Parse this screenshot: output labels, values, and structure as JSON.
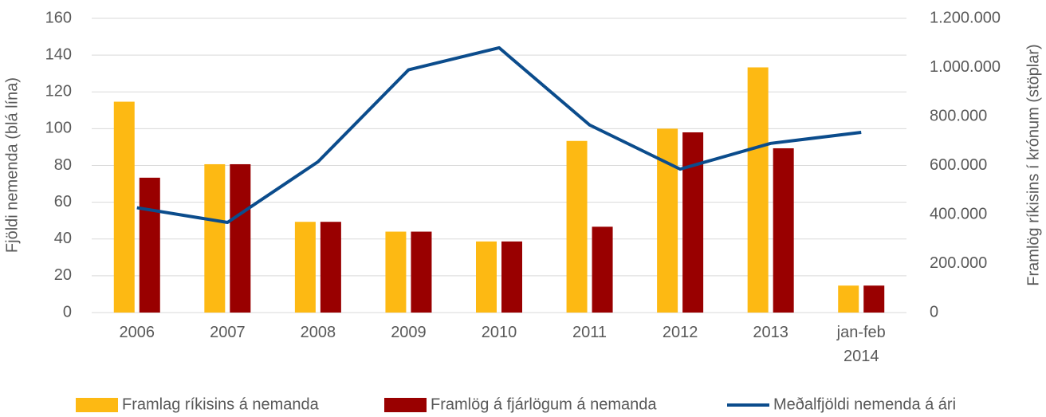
{
  "chart_data": {
    "type": "bar_line",
    "categories": [
      "2006",
      "2007",
      "2008",
      "2009",
      "2010",
      "2011",
      "2012",
      "2013",
      "jan-feb 2014"
    ],
    "series": [
      {
        "name": "Framlag ríkisins á nemanda",
        "type": "bar",
        "axis": "y2",
        "color": "#fdb913",
        "values": [
          860000,
          605000,
          370000,
          330000,
          290000,
          700000,
          750000,
          1000000,
          110000
        ]
      },
      {
        "name": "Framlög á fjárlögum á nemanda",
        "type": "bar",
        "axis": "y2",
        "color": "#990000",
        "values": [
          550000,
          605000,
          370000,
          330000,
          290000,
          350000,
          735000,
          670000,
          110000
        ]
      },
      {
        "name": "Meðalfjöldi nemenda á ári",
        "type": "line",
        "axis": "y",
        "color": "#0b4c8c",
        "values": [
          57,
          49,
          82,
          132,
          144,
          102,
          78,
          92,
          98
        ]
      }
    ],
    "ylabel": "Fjöldi nemenda (blá lína)",
    "y2label": "Framlög ríkisins í krónum (stöplar)",
    "ylim": [
      0,
      160
    ],
    "yticks": [
      0,
      20,
      40,
      60,
      80,
      100,
      120,
      140,
      160
    ],
    "y2lim": [
      0,
      1200000
    ],
    "y2ticks": [
      0,
      {
        "value": 200000,
        "label": "200.000"
      },
      {
        "value": 400000,
        "label": "400.000"
      },
      {
        "value": 600000,
        "label": "600.000"
      },
      {
        "value": 800000,
        "label": "800.000"
      },
      {
        "value": 1000000,
        "label": "1.000.000"
      },
      {
        "value": 1200000,
        "label": "1.200.000"
      }
    ],
    "grid": true,
    "legend": "bottom"
  }
}
